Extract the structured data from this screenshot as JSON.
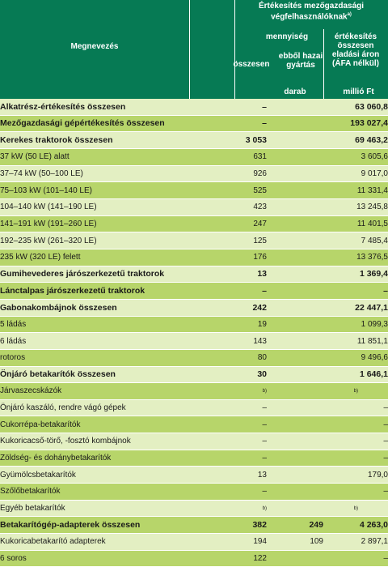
{
  "header": {
    "name_col": "Megnevezés",
    "group_line1": "Értékesítés mezőgazdasági",
    "group_line2": "végfelhasználóknak",
    "group_note": "a)",
    "qty_label": "mennyiség",
    "value_line1": "értékesítés",
    "value_line2": "összesen",
    "value_line3": "eladási áron",
    "value_line4": "(ÁFA nélkül)",
    "total_label": "összesen",
    "domestic_line1": "ebből hazai",
    "domestic_line2": "gyártás",
    "unit_qty": "darab",
    "unit_value": "millió Ft"
  },
  "rows": [
    {
      "name": "Alkatrész-értékesítés összesen",
      "total": "–",
      "domestic": "",
      "value": "63 060,8",
      "bold": true,
      "shade": "lt"
    },
    {
      "name": "Mezőgazdasági gépértékesítés összesen",
      "total": "–",
      "domestic": "",
      "value": "193 027,4",
      "bold": true,
      "shade": "dk"
    },
    {
      "name": "Kerekes traktorok összesen",
      "total": "3 053",
      "domestic": "",
      "value": "69 463,2",
      "bold": true,
      "shade": "lt"
    },
    {
      "name": "37 kW (50 LE) alatt",
      "total": "631",
      "domestic": "",
      "value": "3 605,6",
      "bold": false,
      "shade": "dk"
    },
    {
      "name": "37–74 kW (50–100 LE)",
      "total": "926",
      "domestic": "",
      "value": "9 017,0",
      "bold": false,
      "shade": "lt"
    },
    {
      "name": "75–103 kW (101–140 LE)",
      "total": "525",
      "domestic": "",
      "value": "11 331,4",
      "bold": false,
      "shade": "dk"
    },
    {
      "name": "104–140 kW (141–190 LE)",
      "total": "423",
      "domestic": "",
      "value": "13 245,8",
      "bold": false,
      "shade": "lt"
    },
    {
      "name": "141–191 kW (191–260 LE)",
      "total": "247",
      "domestic": "",
      "value": "11 401,5",
      "bold": false,
      "shade": "dk"
    },
    {
      "name": "192–235 kW (261–320 LE)",
      "total": "125",
      "domestic": "",
      "value": "7 485,4",
      "bold": false,
      "shade": "lt"
    },
    {
      "name": "235 kW (320 LE) felett",
      "total": "176",
      "domestic": "",
      "value": "13 376,5",
      "bold": false,
      "shade": "dk"
    },
    {
      "name": "Gumihevederes járószerkezetű traktorok",
      "total": "13",
      "domestic": "",
      "value": "1 369,4",
      "bold": true,
      "shade": "lt"
    },
    {
      "name": "Lánctalpas járószerkezetű traktorok",
      "total": "–",
      "domestic": "",
      "value": "–",
      "bold": true,
      "shade": "dk"
    },
    {
      "name": "Gabonakombájnok összesen",
      "total": "242",
      "domestic": "",
      "value": "22 447,1",
      "bold": true,
      "shade": "lt"
    },
    {
      "name": "5 ládás",
      "total": "19",
      "domestic": "",
      "value": "1 099,3",
      "bold": false,
      "shade": "dk"
    },
    {
      "name": "6 ládás",
      "total": "143",
      "domestic": "",
      "value": "11 851,1",
      "bold": false,
      "shade": "lt"
    },
    {
      "name": "rotoros",
      "total": "80",
      "domestic": "",
      "value": "9 496,6",
      "bold": false,
      "shade": "dk"
    },
    {
      "name": "Önjáró betakarítók összesen",
      "total": "30",
      "domestic": "",
      "value": "1 646,1",
      "bold": true,
      "shade": "lt"
    },
    {
      "name": "Járvaszecskázók",
      "total": "b)",
      "domestic": "",
      "value": "b)",
      "bold": false,
      "shade": "dk"
    },
    {
      "name": "Önjáró kaszáló, rendre vágó gépek",
      "total": "–",
      "domestic": "",
      "value": "–",
      "bold": false,
      "shade": "lt"
    },
    {
      "name": "Cukorrépa-betakarítók",
      "total": "–",
      "domestic": "",
      "value": "–",
      "bold": false,
      "shade": "dk"
    },
    {
      "name": "Kukoricacső-törő, -fosztó kombájnok",
      "total": "–",
      "domestic": "",
      "value": "–",
      "bold": false,
      "shade": "lt"
    },
    {
      "name": "Zöldség- és dohánybetakarítók",
      "total": "–",
      "domestic": "",
      "value": "–",
      "bold": false,
      "shade": "dk"
    },
    {
      "name": "Gyümölcsbetakarítók",
      "total": "13",
      "domestic": "",
      "value": "179,0",
      "bold": false,
      "shade": "lt"
    },
    {
      "name": "Szőlőbetakarítók",
      "total": "–",
      "domestic": "",
      "value": "–",
      "bold": false,
      "shade": "dk"
    },
    {
      "name": "Egyéb betakarítók",
      "total": "b)",
      "domestic": "",
      "value": "b)",
      "bold": false,
      "shade": "lt"
    },
    {
      "name": "Betakarítógép-adapterek összesen",
      "total": "382",
      "domestic": "249",
      "value": "4 263,0",
      "bold": true,
      "shade": "dk"
    },
    {
      "name": "Kukoricabetakarító adapterek",
      "total": "194",
      "domestic": "109",
      "value": "2 897,1",
      "bold": false,
      "shade": "lt"
    },
    {
      "name": "6 soros",
      "total": "122",
      "domestic": "",
      "value": "–",
      "bold": false,
      "shade": "dk"
    }
  ]
}
